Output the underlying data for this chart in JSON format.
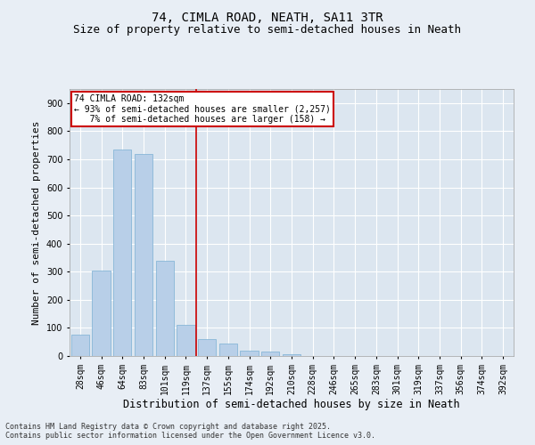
{
  "title1": "74, CIMLA ROAD, NEATH, SA11 3TR",
  "title2": "Size of property relative to semi-detached houses in Neath",
  "xlabel": "Distribution of semi-detached houses by size in Neath",
  "ylabel": "Number of semi-detached properties",
  "categories": [
    "28sqm",
    "46sqm",
    "64sqm",
    "83sqm",
    "101sqm",
    "119sqm",
    "137sqm",
    "155sqm",
    "174sqm",
    "192sqm",
    "210sqm",
    "228sqm",
    "246sqm",
    "265sqm",
    "283sqm",
    "301sqm",
    "319sqm",
    "337sqm",
    "356sqm",
    "374sqm",
    "392sqm"
  ],
  "values": [
    75,
    305,
    735,
    720,
    340,
    110,
    60,
    45,
    20,
    15,
    5,
    0,
    0,
    0,
    0,
    0,
    0,
    0,
    0,
    0,
    0
  ],
  "bar_color": "#b8cfe8",
  "bar_edge_color": "#7aafd4",
  "vline_color": "#cc0000",
  "annotation_text": "74 CIMLA ROAD: 132sqm\n← 93% of semi-detached houses are smaller (2,257)\n   7% of semi-detached houses are larger (158) →",
  "annotation_box_facecolor": "#ffffff",
  "annotation_box_edgecolor": "#cc0000",
  "ylim": [
    0,
    950
  ],
  "yticks": [
    0,
    100,
    200,
    300,
    400,
    500,
    600,
    700,
    800,
    900
  ],
  "bg_color": "#dce6f0",
  "fig_bg_color": "#e8eef5",
  "grid_color": "#ffffff",
  "footer1": "Contains HM Land Registry data © Crown copyright and database right 2025.",
  "footer2": "Contains public sector information licensed under the Open Government Licence v3.0.",
  "title1_fontsize": 10,
  "title2_fontsize": 9,
  "xlabel_fontsize": 8.5,
  "ylabel_fontsize": 8,
  "tick_fontsize": 7,
  "footer_fontsize": 6
}
